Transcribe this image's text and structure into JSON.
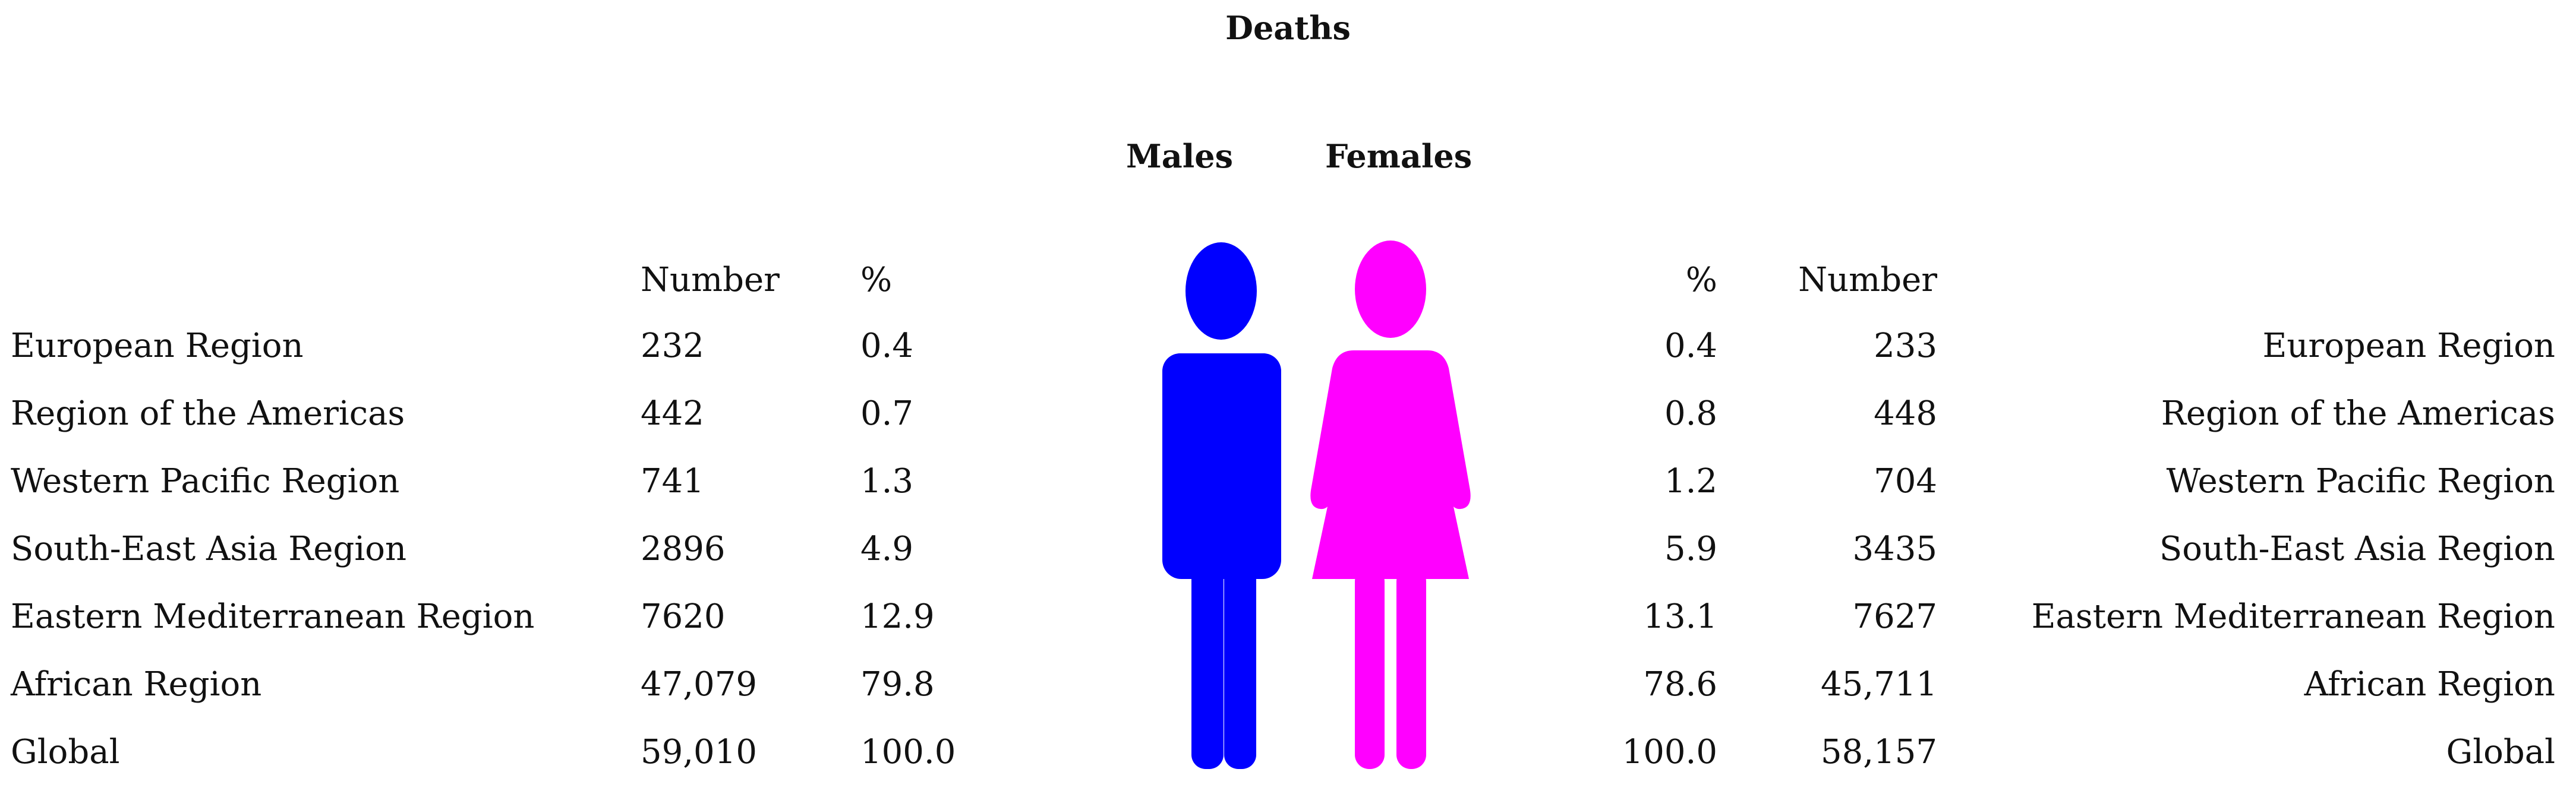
{
  "chart_data": {
    "type": "table",
    "title": "Deaths",
    "groups": [
      "Males",
      "Females"
    ],
    "columns": {
      "males": [
        "Number",
        "%"
      ],
      "females": [
        "%",
        "Number"
      ]
    },
    "rows": [
      {
        "region": "European Region",
        "male_number": "232",
        "male_pct": "0.4",
        "female_pct": "0.4",
        "female_number": "233"
      },
      {
        "region": "Region of the Americas",
        "male_number": "442",
        "male_pct": "0.7",
        "female_pct": "0.8",
        "female_number": "448"
      },
      {
        "region": "Western Pacific Region",
        "male_number": "741",
        "male_pct": "1.3",
        "female_pct": "1.2",
        "female_number": "704"
      },
      {
        "region": "South-East Asia Region",
        "male_number": "2896",
        "male_pct": "4.9",
        "female_pct": "5.9",
        "female_number": "3435"
      },
      {
        "region": "Eastern Mediterranean Region",
        "male_number": "7620",
        "male_pct": "12.9",
        "female_pct": "13.1",
        "female_number": "7627"
      },
      {
        "region": "African Region",
        "male_number": "47,079",
        "male_pct": "79.8",
        "female_pct": "78.6",
        "female_number": "45,711"
      },
      {
        "region": "Global",
        "male_number": "59,010",
        "male_pct": "100.0",
        "female_pct": "100.0",
        "female_number": "58,157"
      }
    ]
  },
  "icons": {
    "male": {
      "name": "male-figure-icon",
      "color": "#0000ff"
    },
    "female": {
      "name": "female-figure-icon",
      "color": "#ff00ff"
    }
  }
}
